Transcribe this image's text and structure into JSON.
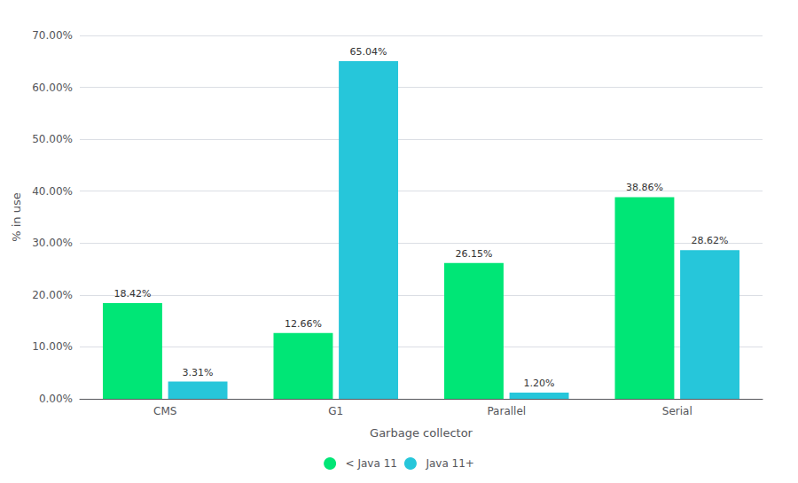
{
  "chart_data": {
    "type": "bar",
    "xlabel": "Garbage collector",
    "ylabel": "% in use",
    "categories": [
      "CMS",
      "G1",
      "Parallel",
      "Serial"
    ],
    "series": [
      {
        "name": "< Java 11",
        "color": "#00E676",
        "values": [
          18.42,
          12.66,
          26.15,
          38.86
        ],
        "value_labels": [
          "18.42%",
          "12.66%",
          "26.15%",
          "38.86%"
        ]
      },
      {
        "name": "Java 11+",
        "color": "#26C6DA",
        "values": [
          3.31,
          65.04,
          1.2,
          28.62
        ],
        "value_labels": [
          "3.31%",
          "65.04%",
          "1.20%",
          "28.62%"
        ]
      }
    ],
    "ylim": [
      0,
      70
    ],
    "yticks": [
      {
        "value": 0,
        "label": "0.00%"
      },
      {
        "value": 10,
        "label": "10.00%"
      },
      {
        "value": 20,
        "label": "20.00%"
      },
      {
        "value": 30,
        "label": "30.00%"
      },
      {
        "value": 40,
        "label": "40.00%"
      },
      {
        "value": 50,
        "label": "50.00%"
      },
      {
        "value": 60,
        "label": "60.00%"
      },
      {
        "value": 70,
        "label": "70.00%"
      }
    ],
    "grid": true,
    "legend": "bottom",
    "data_labels": true
  }
}
